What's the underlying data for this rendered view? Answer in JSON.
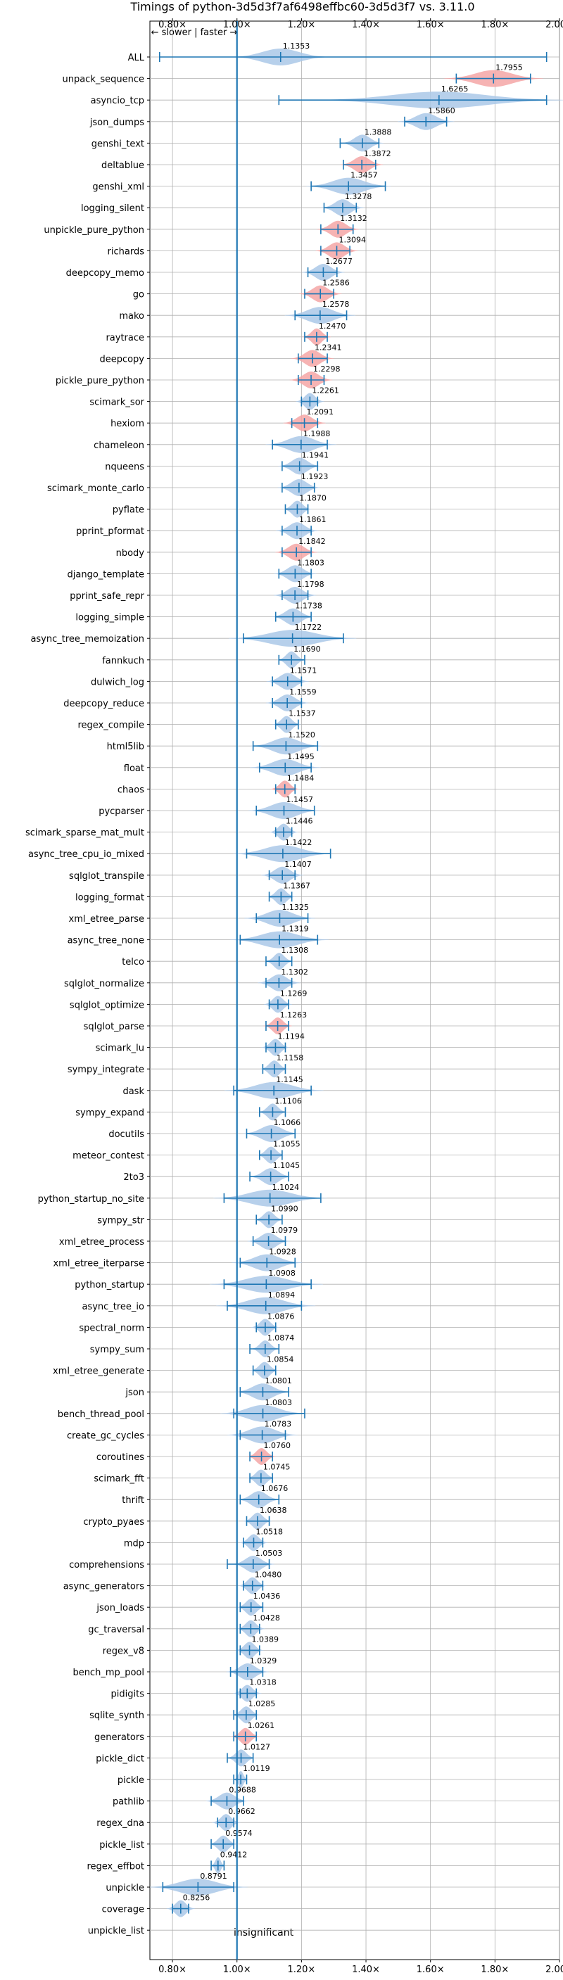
{
  "chart_data": {
    "type": "violin",
    "title": "Timings of python-3d5d3f7af6498effbc60-3d5d3f7 vs. 3.11.0",
    "xlim": [
      0.73,
      2.0
    ],
    "x_ticks": [
      0.8,
      1.0,
      1.2,
      1.4,
      1.6,
      1.8,
      2.0
    ],
    "x_tick_labels": [
      "0.80×",
      "1.00×",
      "1.20×",
      "1.40×",
      "1.60×",
      "1.80×",
      "2.00×"
    ],
    "axis_note": "← slower | faster →",
    "reference_line": 1.0,
    "grid": true,
    "colors": {
      "normal": "#aac8e8",
      "significant": "#f4a6a6",
      "line": "#1f77b4"
    },
    "annotation": "insignificant",
    "benchmarks": [
      {
        "name": "ALL",
        "value": 1.1353,
        "label": "1.1353",
        "lo": 0.76,
        "hi": 1.96,
        "spread": 0.07,
        "significant": false
      },
      {
        "name": "unpack_sequence",
        "value": 1.7955,
        "label": "1.7955",
        "lo": 1.68,
        "hi": 1.91,
        "spread": 0.07,
        "significant": true
      },
      {
        "name": "asyncio_tcp",
        "value": 1.6265,
        "label": "1.6265",
        "lo": 1.13,
        "hi": 1.96,
        "spread": 0.18,
        "significant": false
      },
      {
        "name": "json_dumps",
        "value": 1.586,
        "label": "1.5860",
        "lo": 1.52,
        "hi": 1.65,
        "spread": 0.04,
        "significant": false
      },
      {
        "name": "genshi_text",
        "value": 1.3888,
        "label": "1.3888",
        "lo": 1.32,
        "hi": 1.44,
        "spread": 0.03,
        "significant": false
      },
      {
        "name": "deltablue",
        "value": 1.3872,
        "label": "1.3872",
        "lo": 1.33,
        "hi": 1.43,
        "spread": 0.03,
        "significant": true
      },
      {
        "name": "genshi_xml",
        "value": 1.3457,
        "label": "1.3457",
        "lo": 1.23,
        "hi": 1.46,
        "spread": 0.06,
        "significant": false
      },
      {
        "name": "logging_silent",
        "value": 1.3278,
        "label": "1.3278",
        "lo": 1.27,
        "hi": 1.37,
        "spread": 0.03,
        "significant": false
      },
      {
        "name": "unpickle_pure_python",
        "value": 1.3132,
        "label": "1.3132",
        "lo": 1.26,
        "hi": 1.36,
        "spread": 0.03,
        "significant": true
      },
      {
        "name": "richards",
        "value": 1.3094,
        "label": "1.3094",
        "lo": 1.26,
        "hi": 1.35,
        "spread": 0.03,
        "significant": true
      },
      {
        "name": "deepcopy_memo",
        "value": 1.2677,
        "label": "1.2677",
        "lo": 1.22,
        "hi": 1.31,
        "spread": 0.03,
        "significant": false
      },
      {
        "name": "go",
        "value": 1.2586,
        "label": "1.2586",
        "lo": 1.21,
        "hi": 1.3,
        "spread": 0.03,
        "significant": true
      },
      {
        "name": "mako",
        "value": 1.2578,
        "label": "1.2578",
        "lo": 1.18,
        "hi": 1.34,
        "spread": 0.05,
        "significant": false
      },
      {
        "name": "raytrace",
        "value": 1.247,
        "label": "1.2470",
        "lo": 1.21,
        "hi": 1.28,
        "spread": 0.02,
        "significant": true
      },
      {
        "name": "deepcopy",
        "value": 1.2341,
        "label": "1.2341",
        "lo": 1.19,
        "hi": 1.28,
        "spread": 0.03,
        "significant": true
      },
      {
        "name": "pickle_pure_python",
        "value": 1.2298,
        "label": "1.2298",
        "lo": 1.19,
        "hi": 1.27,
        "spread": 0.03,
        "significant": true
      },
      {
        "name": "scimark_sor",
        "value": 1.2261,
        "label": "1.2261",
        "lo": 1.2,
        "hi": 1.25,
        "spread": 0.02,
        "significant": false
      },
      {
        "name": "hexiom",
        "value": 1.2091,
        "label": "1.2091",
        "lo": 1.17,
        "hi": 1.25,
        "spread": 0.03,
        "significant": true
      },
      {
        "name": "chameleon",
        "value": 1.1988,
        "label": "1.1988",
        "lo": 1.11,
        "hi": 1.28,
        "spread": 0.05,
        "significant": false
      },
      {
        "name": "nqueens",
        "value": 1.1941,
        "label": "1.1941",
        "lo": 1.14,
        "hi": 1.25,
        "spread": 0.03,
        "significant": false
      },
      {
        "name": "scimark_monte_carlo",
        "value": 1.1923,
        "label": "1.1923",
        "lo": 1.14,
        "hi": 1.24,
        "spread": 0.03,
        "significant": false
      },
      {
        "name": "pyflate",
        "value": 1.187,
        "label": "1.1870",
        "lo": 1.15,
        "hi": 1.22,
        "spread": 0.02,
        "significant": false
      },
      {
        "name": "pprint_pformat",
        "value": 1.1861,
        "label": "1.1861",
        "lo": 1.14,
        "hi": 1.23,
        "spread": 0.03,
        "significant": false
      },
      {
        "name": "nbody",
        "value": 1.1842,
        "label": "1.1842",
        "lo": 1.14,
        "hi": 1.23,
        "spread": 0.03,
        "significant": true
      },
      {
        "name": "django_template",
        "value": 1.1803,
        "label": "1.1803",
        "lo": 1.13,
        "hi": 1.23,
        "spread": 0.03,
        "significant": false
      },
      {
        "name": "pprint_safe_repr",
        "value": 1.1798,
        "label": "1.1798",
        "lo": 1.14,
        "hi": 1.22,
        "spread": 0.03,
        "significant": false
      },
      {
        "name": "logging_simple",
        "value": 1.1738,
        "label": "1.1738",
        "lo": 1.12,
        "hi": 1.23,
        "spread": 0.03,
        "significant": false
      },
      {
        "name": "async_tree_memoization",
        "value": 1.1722,
        "label": "1.1722",
        "lo": 1.02,
        "hi": 1.33,
        "spread": 0.09,
        "significant": false
      },
      {
        "name": "fannkuch",
        "value": 1.169,
        "label": "1.1690",
        "lo": 1.13,
        "hi": 1.21,
        "spread": 0.02,
        "significant": false
      },
      {
        "name": "dulwich_log",
        "value": 1.1571,
        "label": "1.1571",
        "lo": 1.11,
        "hi": 1.2,
        "spread": 0.03,
        "significant": false
      },
      {
        "name": "deepcopy_reduce",
        "value": 1.1559,
        "label": "1.1559",
        "lo": 1.11,
        "hi": 1.2,
        "spread": 0.03,
        "significant": false
      },
      {
        "name": "regex_compile",
        "value": 1.1537,
        "label": "1.1537",
        "lo": 1.12,
        "hi": 1.19,
        "spread": 0.02,
        "significant": false
      },
      {
        "name": "html5lib",
        "value": 1.152,
        "label": "1.1520",
        "lo": 1.05,
        "hi": 1.25,
        "spread": 0.05,
        "significant": false
      },
      {
        "name": "float",
        "value": 1.1495,
        "label": "1.1495",
        "lo": 1.07,
        "hi": 1.23,
        "spread": 0.05,
        "significant": false
      },
      {
        "name": "chaos",
        "value": 1.1484,
        "label": "1.1484",
        "lo": 1.12,
        "hi": 1.18,
        "spread": 0.02,
        "significant": true
      },
      {
        "name": "pycparser",
        "value": 1.1457,
        "label": "1.1457",
        "lo": 1.06,
        "hi": 1.24,
        "spread": 0.05,
        "significant": false
      },
      {
        "name": "scimark_sparse_mat_mult",
        "value": 1.1446,
        "label": "1.1446",
        "lo": 1.12,
        "hi": 1.17,
        "spread": 0.02,
        "significant": false
      },
      {
        "name": "async_tree_cpu_io_mixed",
        "value": 1.1422,
        "label": "1.1422",
        "lo": 1.03,
        "hi": 1.29,
        "spread": 0.07,
        "significant": false
      },
      {
        "name": "sqlglot_transpile",
        "value": 1.1407,
        "label": "1.1407",
        "lo": 1.1,
        "hi": 1.18,
        "spread": 0.03,
        "significant": false
      },
      {
        "name": "logging_format",
        "value": 1.1367,
        "label": "1.1367",
        "lo": 1.1,
        "hi": 1.17,
        "spread": 0.02,
        "significant": false
      },
      {
        "name": "xml_etree_parse",
        "value": 1.1325,
        "label": "1.1325",
        "lo": 1.06,
        "hi": 1.22,
        "spread": 0.05,
        "significant": false
      },
      {
        "name": "async_tree_none",
        "value": 1.1319,
        "label": "1.1319",
        "lo": 1.01,
        "hi": 1.25,
        "spread": 0.07,
        "significant": false
      },
      {
        "name": "telco",
        "value": 1.1308,
        "label": "1.1308",
        "lo": 1.09,
        "hi": 1.17,
        "spread": 0.02,
        "significant": false
      },
      {
        "name": "sqlglot_normalize",
        "value": 1.1302,
        "label": "1.1302",
        "lo": 1.09,
        "hi": 1.17,
        "spread": 0.03,
        "significant": false
      },
      {
        "name": "sqlglot_optimize",
        "value": 1.1269,
        "label": "1.1269",
        "lo": 1.1,
        "hi": 1.16,
        "spread": 0.02,
        "significant": false
      },
      {
        "name": "sqlglot_parse",
        "value": 1.1263,
        "label": "1.1263",
        "lo": 1.09,
        "hi": 1.16,
        "spread": 0.02,
        "significant": true
      },
      {
        "name": "scimark_lu",
        "value": 1.1194,
        "label": "1.1194",
        "lo": 1.09,
        "hi": 1.15,
        "spread": 0.02,
        "significant": false
      },
      {
        "name": "sympy_integrate",
        "value": 1.1158,
        "label": "1.1158",
        "lo": 1.08,
        "hi": 1.15,
        "spread": 0.02,
        "significant": false
      },
      {
        "name": "dask",
        "value": 1.1145,
        "label": "1.1145",
        "lo": 0.99,
        "hi": 1.23,
        "spread": 0.07,
        "significant": false
      },
      {
        "name": "sympy_expand",
        "value": 1.1106,
        "label": "1.1106",
        "lo": 1.07,
        "hi": 1.15,
        "spread": 0.02,
        "significant": false
      },
      {
        "name": "docutils",
        "value": 1.1066,
        "label": "1.1066",
        "lo": 1.03,
        "hi": 1.18,
        "spread": 0.04,
        "significant": false
      },
      {
        "name": "meteor_contest",
        "value": 1.1055,
        "label": "1.1055",
        "lo": 1.07,
        "hi": 1.14,
        "spread": 0.02,
        "significant": false
      },
      {
        "name": "2to3",
        "value": 1.1045,
        "label": "1.1045",
        "lo": 1.04,
        "hi": 1.16,
        "spread": 0.03,
        "significant": false
      },
      {
        "name": "python_startup_no_site",
        "value": 1.1024,
        "label": "1.1024",
        "lo": 0.96,
        "hi": 1.26,
        "spread": 0.08,
        "significant": false
      },
      {
        "name": "sympy_str",
        "value": 1.099,
        "label": "1.0990",
        "lo": 1.06,
        "hi": 1.14,
        "spread": 0.02,
        "significant": false
      },
      {
        "name": "xml_etree_process",
        "value": 1.0979,
        "label": "1.0979",
        "lo": 1.05,
        "hi": 1.15,
        "spread": 0.03,
        "significant": false
      },
      {
        "name": "xml_etree_iterparse",
        "value": 1.0928,
        "label": "1.0928",
        "lo": 1.01,
        "hi": 1.18,
        "spread": 0.05,
        "significant": false
      },
      {
        "name": "python_startup",
        "value": 1.0908,
        "label": "1.0908",
        "lo": 0.96,
        "hi": 1.23,
        "spread": 0.08,
        "significant": false
      },
      {
        "name": "async_tree_io",
        "value": 1.0894,
        "label": "1.0894",
        "lo": 0.97,
        "hi": 1.2,
        "spread": 0.07,
        "significant": false
      },
      {
        "name": "spectral_norm",
        "value": 1.0876,
        "label": "1.0876",
        "lo": 1.06,
        "hi": 1.12,
        "spread": 0.02,
        "significant": false
      },
      {
        "name": "sympy_sum",
        "value": 1.0874,
        "label": "1.0874",
        "lo": 1.04,
        "hi": 1.13,
        "spread": 0.02,
        "significant": false
      },
      {
        "name": "xml_etree_generate",
        "value": 1.0854,
        "label": "1.0854",
        "lo": 1.05,
        "hi": 1.12,
        "spread": 0.02,
        "significant": false
      },
      {
        "name": "json",
        "value": 1.0801,
        "label": "1.0801",
        "lo": 1.01,
        "hi": 1.16,
        "spread": 0.04,
        "significant": false
      },
      {
        "name": "bench_thread_pool",
        "value": 1.0803,
        "label": "1.0803",
        "lo": 0.99,
        "hi": 1.21,
        "spread": 0.06,
        "significant": false
      },
      {
        "name": "create_gc_cycles",
        "value": 1.0783,
        "label": "1.0783",
        "lo": 1.01,
        "hi": 1.15,
        "spread": 0.05,
        "significant": false
      },
      {
        "name": "coroutines",
        "value": 1.076,
        "label": "1.0760",
        "lo": 1.04,
        "hi": 1.11,
        "spread": 0.02,
        "significant": true
      },
      {
        "name": "scimark_fft",
        "value": 1.0745,
        "label": "1.0745",
        "lo": 1.04,
        "hi": 1.11,
        "spread": 0.02,
        "significant": false
      },
      {
        "name": "thrift",
        "value": 1.0676,
        "label": "1.0676",
        "lo": 1.01,
        "hi": 1.13,
        "spread": 0.03,
        "significant": false
      },
      {
        "name": "crypto_pyaes",
        "value": 1.0638,
        "label": "1.0638",
        "lo": 1.03,
        "hi": 1.1,
        "spread": 0.02,
        "significant": false
      },
      {
        "name": "mdp",
        "value": 1.0518,
        "label": "1.0518",
        "lo": 1.02,
        "hi": 1.08,
        "spread": 0.02,
        "significant": false
      },
      {
        "name": "comprehensions",
        "value": 1.0503,
        "label": "1.0503",
        "lo": 0.97,
        "hi": 1.1,
        "spread": 0.03,
        "significant": false
      },
      {
        "name": "async_generators",
        "value": 1.048,
        "label": "1.0480",
        "lo": 1.02,
        "hi": 1.08,
        "spread": 0.02,
        "significant": false
      },
      {
        "name": "json_loads",
        "value": 1.0436,
        "label": "1.0436",
        "lo": 1.01,
        "hi": 1.08,
        "spread": 0.02,
        "significant": false
      },
      {
        "name": "gc_traversal",
        "value": 1.0428,
        "label": "1.0428",
        "lo": 1.01,
        "hi": 1.07,
        "spread": 0.02,
        "significant": false
      },
      {
        "name": "regex_v8",
        "value": 1.0389,
        "label": "1.0389",
        "lo": 1.01,
        "hi": 1.07,
        "spread": 0.02,
        "significant": false
      },
      {
        "name": "bench_mp_pool",
        "value": 1.0329,
        "label": "1.0329",
        "lo": 0.98,
        "hi": 1.08,
        "spread": 0.03,
        "significant": false
      },
      {
        "name": "pidigits",
        "value": 1.0318,
        "label": "1.0318",
        "lo": 1.01,
        "hi": 1.06,
        "spread": 0.02,
        "significant": false
      },
      {
        "name": "sqlite_synth",
        "value": 1.0285,
        "label": "1.0285",
        "lo": 0.99,
        "hi": 1.06,
        "spread": 0.02,
        "significant": false
      },
      {
        "name": "generators",
        "value": 1.0261,
        "label": "1.0261",
        "lo": 0.99,
        "hi": 1.06,
        "spread": 0.02,
        "significant": true
      },
      {
        "name": "pickle_dict",
        "value": 1.0127,
        "label": "1.0127",
        "lo": 0.97,
        "hi": 1.05,
        "spread": 0.02,
        "significant": false
      },
      {
        "name": "pickle",
        "value": 1.0119,
        "label": "1.0119",
        "lo": 0.99,
        "hi": 1.03,
        "spread": 0.01,
        "significant": false
      },
      {
        "name": "pathlib",
        "value": 0.9688,
        "label": "0.9688",
        "lo": 0.92,
        "hi": 1.02,
        "spread": 0.03,
        "significant": false
      },
      {
        "name": "regex_dna",
        "value": 0.9662,
        "label": "0.9662",
        "lo": 0.94,
        "hi": 0.99,
        "spread": 0.02,
        "significant": false
      },
      {
        "name": "pickle_list",
        "value": 0.9574,
        "label": "0.9574",
        "lo": 0.92,
        "hi": 0.99,
        "spread": 0.02,
        "significant": false
      },
      {
        "name": "regex_effbot",
        "value": 0.9412,
        "label": "0.9412",
        "lo": 0.92,
        "hi": 0.96,
        "spread": 0.01,
        "significant": false
      },
      {
        "name": "unpickle",
        "value": 0.8791,
        "label": "0.8791",
        "lo": 0.77,
        "hi": 0.99,
        "spread": 0.07,
        "significant": false
      },
      {
        "name": "coverage",
        "value": 0.8256,
        "label": "0.8256",
        "lo": 0.8,
        "hi": 0.85,
        "spread": 0.02,
        "significant": false
      },
      {
        "name": "unpickle_list",
        "value": null,
        "label": "",
        "lo": null,
        "hi": null,
        "spread": 0,
        "significant": false
      }
    ]
  }
}
